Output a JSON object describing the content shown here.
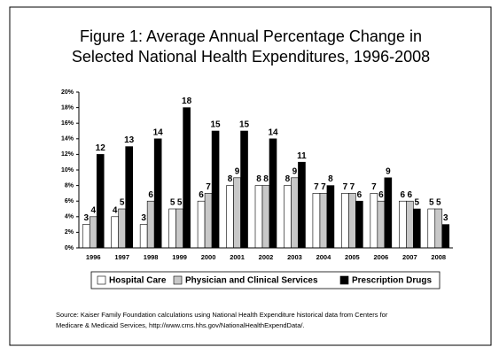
{
  "chart_data": {
    "type": "bar",
    "title": [
      "Figure 1:  Average Annual Percentage Change in",
      "Selected National Health Expenditures, 1996-2008"
    ],
    "categories": [
      "1996",
      "1997",
      "1998",
      "1999",
      "2000",
      "2001",
      "2002",
      "2003",
      "2004",
      "2005",
      "2006",
      "2007",
      "2008"
    ],
    "series": [
      {
        "name": "Hospital Care",
        "color": "#ffffff",
        "values": [
          3,
          4,
          3,
          5,
          6,
          8,
          8,
          8,
          7,
          7,
          7,
          6,
          5
        ]
      },
      {
        "name": "Physician and Clinical Services",
        "color": "#c8c8c8",
        "values": [
          4,
          5,
          6,
          5,
          7,
          9,
          8,
          9,
          7,
          7,
          6,
          6,
          5
        ]
      },
      {
        "name": "Prescription Drugs",
        "color": "#000000",
        "values": [
          12,
          13,
          14,
          18,
          15,
          15,
          14,
          11,
          8,
          6,
          9,
          5,
          3
        ]
      }
    ],
    "ylim": [
      0,
      20
    ],
    "yticks": [
      {
        "value": 0,
        "label": "0%"
      },
      {
        "value": 2,
        "label": "2%"
      },
      {
        "value": 4,
        "label": "4%"
      },
      {
        "value": 6,
        "label": "6%"
      },
      {
        "value": 8,
        "label": "8%"
      },
      {
        "value": 10,
        "label": "10%"
      },
      {
        "value": 12,
        "label": "12%"
      },
      {
        "value": 14,
        "label": "14%"
      },
      {
        "value": 16,
        "label": "16%"
      },
      {
        "value": 18,
        "label": "18%"
      },
      {
        "value": 20,
        "label": "20%"
      }
    ],
    "grid": false,
    "legend": "bottom",
    "source": [
      "Source: Kaiser Family Foundation calculations using National Health Expenditure historical data from Centers for",
      "Medicare & Medicaid Services, http://www.cms.hhs.gov/NationalHealthExpendData/."
    ]
  }
}
